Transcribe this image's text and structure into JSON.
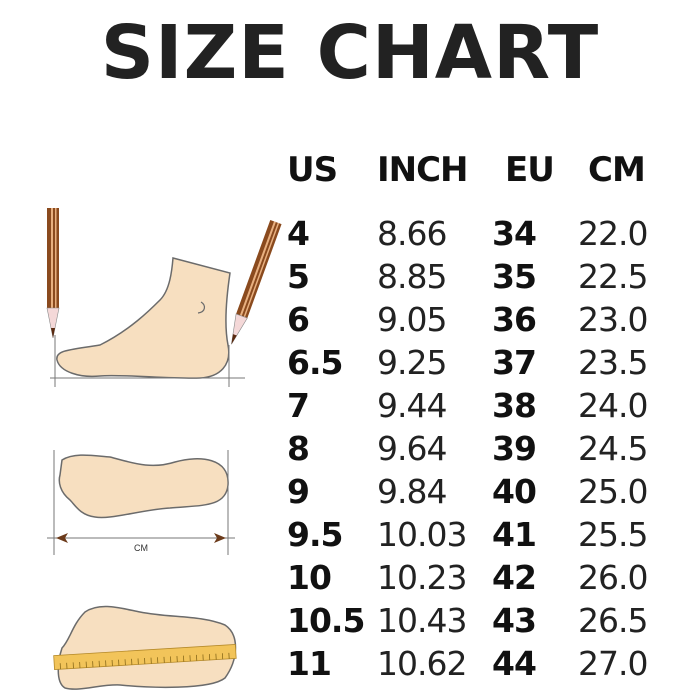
{
  "title": "SIZE CHART",
  "columns": [
    "US",
    "INCH",
    "EU",
    "CM"
  ],
  "rows": [
    [
      "4",
      "8.66",
      "34",
      "22.0"
    ],
    [
      "5",
      "8.85",
      "35",
      "22.5"
    ],
    [
      "6",
      "9.05",
      "36",
      "23.0"
    ],
    [
      "6.5",
      "9.25",
      "37",
      "23.5"
    ],
    [
      "7",
      "9.44",
      "38",
      "24.0"
    ],
    [
      "8",
      "9.64",
      "39",
      "24.5"
    ],
    [
      "9",
      "9.84",
      "40",
      "25.0"
    ],
    [
      "9.5",
      "10.03",
      "41",
      "25.5"
    ],
    [
      "10",
      "10.23",
      "42",
      "26.0"
    ],
    [
      "10.5",
      "10.43",
      "43",
      "26.5"
    ],
    [
      "11",
      "10.62",
      "44",
      "27.0"
    ]
  ],
  "illustration": {
    "measure_label": "CM",
    "colors": {
      "skin": "#f7dfc0",
      "outline": "#6b6b6b",
      "pencil": "#8a4a1e",
      "ruler": "#f2c45a"
    }
  }
}
